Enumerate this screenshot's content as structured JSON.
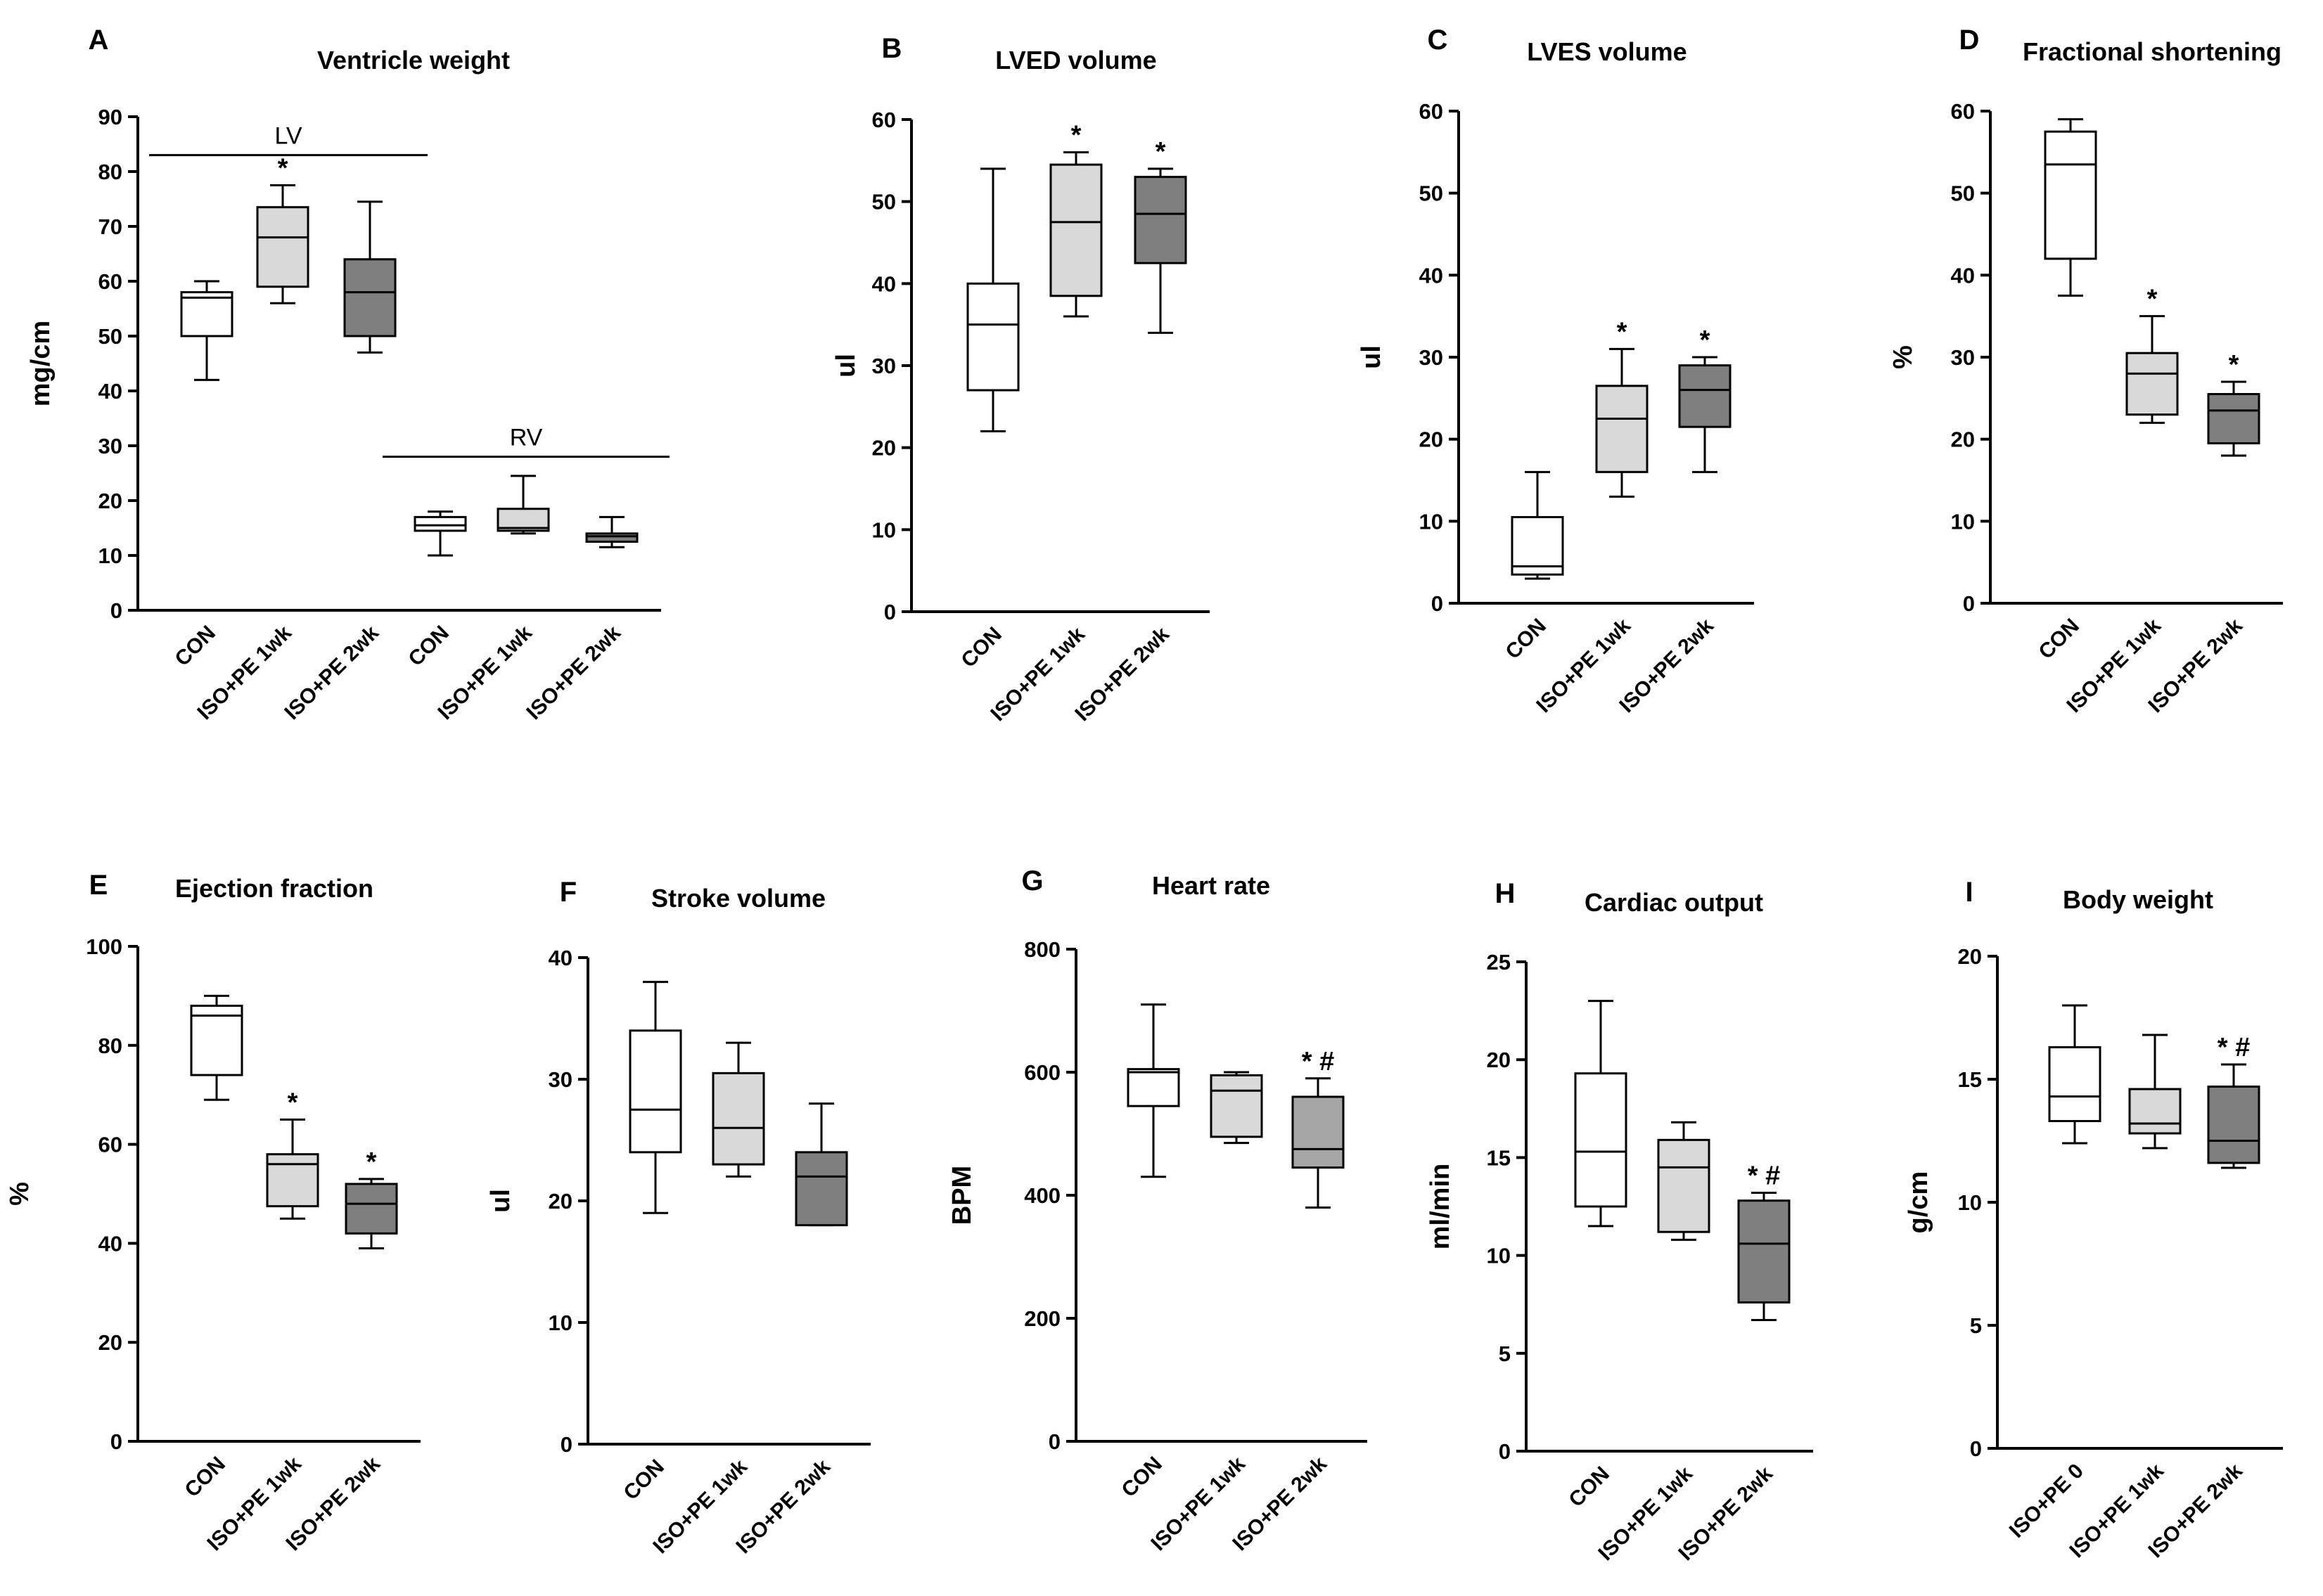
{
  "figure": {
    "colors": {
      "white": "#ffffff",
      "light": "#d9d9d9",
      "dark": "#7f7f7f",
      "mid": "#a6a6a6",
      "stroke": "#000000"
    }
  },
  "chart_data": [
    {
      "panel": "A",
      "type": "box",
      "title": "Ventricle weight",
      "ylabel": "mg/cm",
      "ylim": [
        0,
        90
      ],
      "yticks": [
        0,
        10,
        20,
        30,
        40,
        50,
        60,
        70,
        80,
        90
      ],
      "categories": [
        "CON",
        "ISO+PE 1wk",
        "ISO+PE 2wk",
        "CON",
        "ISO+PE 1wk",
        "ISO+PE 2wk"
      ],
      "groups": [
        {
          "label": "LV",
          "members": [
            0,
            1,
            2
          ]
        },
        {
          "label": "RV",
          "members": [
            3,
            4,
            5
          ]
        }
      ],
      "boxes": [
        {
          "min": 42,
          "q1": 50,
          "median": 57,
          "q3": 58,
          "max": 60,
          "fill": "white",
          "mark": ""
        },
        {
          "min": 56,
          "q1": 59,
          "median": 68,
          "q3": 73.5,
          "max": 77.5,
          "fill": "light",
          "mark": "*"
        },
        {
          "min": 47,
          "q1": 50,
          "median": 58,
          "q3": 64,
          "max": 74.5,
          "fill": "dark",
          "mark": ""
        },
        {
          "min": 10,
          "q1": 14.5,
          "median": 15.5,
          "q3": 17,
          "max": 18,
          "fill": "white",
          "mark": ""
        },
        {
          "min": 14,
          "q1": 14.5,
          "median": 15,
          "q3": 18.5,
          "max": 24.5,
          "fill": "light",
          "mark": ""
        },
        {
          "min": 11.5,
          "q1": 12.5,
          "median": 13.5,
          "q3": 14,
          "max": 17,
          "fill": "dark",
          "mark": ""
        }
      ]
    },
    {
      "panel": "B",
      "type": "box",
      "title": "LVED volume",
      "ylabel": "ul",
      "ylim": [
        0,
        60
      ],
      "yticks": [
        0,
        10,
        20,
        30,
        40,
        50,
        60
      ],
      "categories": [
        "CON",
        "ISO+PE 1wk",
        "ISO+PE 2wk"
      ],
      "boxes": [
        {
          "min": 22,
          "q1": 27,
          "median": 35,
          "q3": 40,
          "max": 54,
          "fill": "white",
          "mark": ""
        },
        {
          "min": 36,
          "q1": 38.5,
          "median": 47.5,
          "q3": 54.5,
          "max": 56,
          "fill": "light",
          "mark": "*"
        },
        {
          "min": 34,
          "q1": 42.5,
          "median": 48.5,
          "q3": 53,
          "max": 54,
          "fill": "dark",
          "mark": "*"
        }
      ]
    },
    {
      "panel": "C",
      "type": "box",
      "title": "LVES volume",
      "ylabel": "ul",
      "ylim": [
        0,
        60
      ],
      "yticks": [
        0,
        10,
        20,
        30,
        40,
        50,
        60
      ],
      "categories": [
        "CON",
        "ISO+PE 1wk",
        "ISO+PE 2wk"
      ],
      "boxes": [
        {
          "min": 3,
          "q1": 3.5,
          "median": 4.5,
          "q3": 10.5,
          "max": 16,
          "fill": "white",
          "mark": ""
        },
        {
          "min": 13,
          "q1": 16,
          "median": 22.5,
          "q3": 26.5,
          "max": 31,
          "fill": "light",
          "mark": "*"
        },
        {
          "min": 16,
          "q1": 21.5,
          "median": 26,
          "q3": 29,
          "max": 30,
          "fill": "dark",
          "mark": "*"
        }
      ]
    },
    {
      "panel": "D",
      "type": "box",
      "title": "Fractional shortening",
      "ylabel": "%",
      "ylim": [
        0,
        60
      ],
      "yticks": [
        0,
        10,
        20,
        30,
        40,
        50,
        60
      ],
      "categories": [
        "CON",
        "ISO+PE 1wk",
        "ISO+PE 2wk"
      ],
      "boxes": [
        {
          "min": 37.5,
          "q1": 42,
          "median": 53.5,
          "q3": 57.5,
          "max": 59,
          "fill": "white",
          "mark": ""
        },
        {
          "min": 22,
          "q1": 23,
          "median": 28,
          "q3": 30.5,
          "max": 35,
          "fill": "light",
          "mark": "*"
        },
        {
          "min": 18,
          "q1": 19.5,
          "median": 23.5,
          "q3": 25.5,
          "max": 27,
          "fill": "dark",
          "mark": "*"
        }
      ]
    },
    {
      "panel": "E",
      "type": "box",
      "title": "Ejection fraction",
      "ylabel": "%",
      "ylim": [
        0,
        100
      ],
      "yticks": [
        0,
        20,
        40,
        60,
        80,
        100
      ],
      "categories": [
        "CON",
        "ISO+PE 1wk",
        "ISO+PE 2wk"
      ],
      "boxes": [
        {
          "min": 69,
          "q1": 74,
          "median": 86,
          "q3": 88,
          "max": 90,
          "fill": "white",
          "mark": ""
        },
        {
          "min": 45,
          "q1": 47.5,
          "median": 56,
          "q3": 58,
          "max": 65,
          "fill": "light",
          "mark": "*"
        },
        {
          "min": 39,
          "q1": 42,
          "median": 48,
          "q3": 52,
          "max": 53,
          "fill": "dark",
          "mark": "*"
        }
      ]
    },
    {
      "panel": "F",
      "type": "box",
      "title": "Stroke volume",
      "ylabel": "ul",
      "ylim": [
        0,
        40
      ],
      "yticks": [
        0,
        10,
        20,
        30,
        40
      ],
      "categories": [
        "CON",
        "ISO+PE 1wk",
        "ISO+PE 2wk"
      ],
      "boxes": [
        {
          "min": 19,
          "q1": 24,
          "median": 27.5,
          "q3": 34,
          "max": 38,
          "fill": "white",
          "mark": ""
        },
        {
          "min": 22,
          "q1": 23,
          "median": 26,
          "q3": 30.5,
          "max": 33,
          "fill": "light",
          "mark": ""
        },
        {
          "min": 18,
          "q1": 18,
          "median": 22,
          "q3": 24,
          "max": 28,
          "fill": "dark",
          "mark": ""
        }
      ]
    },
    {
      "panel": "G",
      "type": "box",
      "title": "Heart rate",
      "ylabel": "BPM",
      "ylim": [
        0,
        800
      ],
      "yticks": [
        0,
        200,
        400,
        600,
        800
      ],
      "categories": [
        "CON",
        "ISO+PE 1wk",
        "ISO+PE 2wk"
      ],
      "boxes": [
        {
          "min": 430,
          "q1": 545,
          "median": 600,
          "q3": 605,
          "max": 710,
          "fill": "white",
          "mark": ""
        },
        {
          "min": 485,
          "q1": 495,
          "median": 570,
          "q3": 595,
          "max": 600,
          "fill": "light",
          "mark": ""
        },
        {
          "min": 380,
          "q1": 445,
          "median": 475,
          "q3": 560,
          "max": 590,
          "fill": "mid",
          "mark": "* #"
        }
      ]
    },
    {
      "panel": "H",
      "type": "box",
      "title": "Cardiac output",
      "ylabel": "ml/min",
      "ylim": [
        0,
        25
      ],
      "yticks": [
        0,
        5,
        10,
        15,
        20,
        25
      ],
      "categories": [
        "CON",
        "ISO+PE 1wk",
        "ISO+PE 2wk"
      ],
      "boxes": [
        {
          "min": 11.5,
          "q1": 12.5,
          "median": 15.3,
          "q3": 19.3,
          "max": 23,
          "fill": "white",
          "mark": ""
        },
        {
          "min": 10.8,
          "q1": 11.2,
          "median": 14.5,
          "q3": 15.9,
          "max": 16.8,
          "fill": "light",
          "mark": ""
        },
        {
          "min": 6.7,
          "q1": 7.6,
          "median": 10.6,
          "q3": 12.8,
          "max": 13.2,
          "fill": "dark",
          "mark": "* #"
        }
      ]
    },
    {
      "panel": "I",
      "type": "box",
      "title": "Body weight",
      "ylabel": "g/cm",
      "ylim": [
        0,
        20
      ],
      "yticks": [
        0,
        5,
        10,
        15,
        20
      ],
      "categories": [
        "ISO+PE 0",
        "ISO+PE 1wk",
        "ISO+PE 2wk"
      ],
      "boxes": [
        {
          "min": 12.4,
          "q1": 13.3,
          "median": 14.3,
          "q3": 16.3,
          "max": 18,
          "fill": "white",
          "mark": ""
        },
        {
          "min": 12.2,
          "q1": 12.8,
          "median": 13.2,
          "q3": 14.6,
          "max": 16.8,
          "fill": "light",
          "mark": ""
        },
        {
          "min": 11.4,
          "q1": 11.6,
          "median": 12.5,
          "q3": 14.7,
          "max": 15.6,
          "fill": "dark",
          "mark": "* #"
        }
      ]
    }
  ]
}
